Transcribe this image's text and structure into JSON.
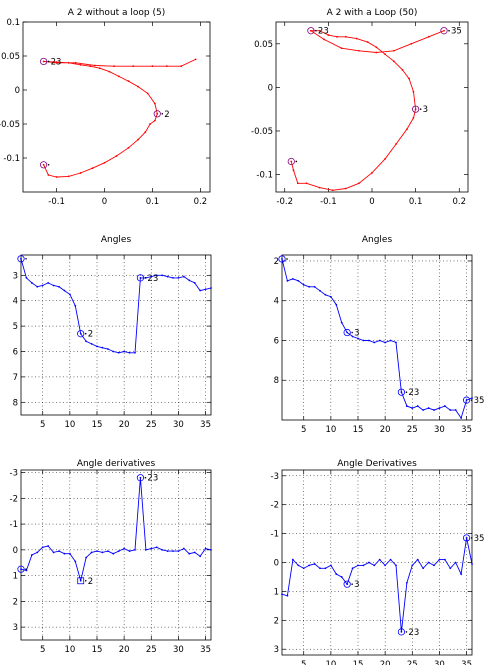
{
  "chart_data": [
    {
      "panel": "top-left",
      "type": "line",
      "title": "A 2 without a loop (5)",
      "line_color": "#ff0000",
      "marker_color": "#800080",
      "xlim": [
        -0.17,
        0.22
      ],
      "ylim": [
        0.1,
        -0.15
      ],
      "xticks": [
        -0.1,
        0,
        0.1,
        0.2
      ],
      "xtick_labels": [
        "-0.1",
        "0",
        "0.1",
        "0.2"
      ],
      "yticks": [
        -0.1,
        -0.05,
        0,
        0.05,
        0.1
      ],
      "ytick_labels": [
        "-0.1",
        "-0.05",
        "0",
        "0.05",
        "0.1"
      ],
      "grid": false,
      "x": [
        -0.127,
        -0.117,
        -0.1,
        -0.075,
        -0.05,
        -0.025,
        0.0,
        0.025,
        0.05,
        0.07,
        0.085,
        0.095,
        0.105,
        0.11,
        0.105,
        0.09,
        0.07,
        0.05,
        0.03,
        0.01,
        -0.01,
        -0.03,
        -0.05,
        -0.075,
        -0.1,
        -0.127,
        -0.1,
        -0.06,
        -0.02,
        0.02,
        0.06,
        0.1,
        0.13,
        0.16,
        0.19
      ],
      "y": [
        -0.11,
        -0.125,
        -0.128,
        -0.127,
        -0.122,
        -0.115,
        -0.107,
        -0.097,
        -0.085,
        -0.073,
        -0.062,
        -0.05,
        -0.045,
        -0.035,
        -0.02,
        -0.005,
        0.005,
        0.013,
        0.02,
        0.027,
        0.032,
        0.035,
        0.037,
        0.04,
        0.041,
        0.042,
        0.04,
        0.04,
        0.036,
        0.035,
        0.035,
        0.035,
        0.035,
        0.035,
        0.045
      ],
      "marked_points": [
        {
          "index": 1,
          "label": ""
        },
        {
          "index": 14,
          "label": "2"
        },
        {
          "index": 26,
          "label": "23"
        }
      ]
    },
    {
      "panel": "top-right",
      "type": "line",
      "title": "A 2 with a Loop (50)",
      "line_color": "#ff0000",
      "marker_color": "#800080",
      "xlim": [
        -0.22,
        0.22
      ],
      "ylim": [
        0.075,
        -0.12
      ],
      "xticks": [
        -0.2,
        -0.1,
        0,
        0.1,
        0.2
      ],
      "xtick_labels": [
        "-0.2",
        "-0.1",
        "0",
        "0.1",
        "0.2"
      ],
      "yticks": [
        -0.1,
        -0.05,
        0,
        0.05
      ],
      "ytick_labels": [
        "-0.1",
        "-0.05",
        "0",
        "0.05"
      ],
      "grid": false,
      "x": [
        -0.185,
        -0.18,
        -0.17,
        -0.15,
        -0.12,
        -0.09,
        -0.06,
        -0.03,
        0.0,
        0.03,
        0.055,
        0.08,
        0.095,
        0.1,
        0.095,
        0.085,
        0.07,
        0.05,
        0.03,
        0.01,
        -0.01,
        -0.035,
        -0.06,
        -0.08,
        -0.1,
        -0.12,
        -0.14,
        -0.11,
        -0.07,
        -0.03,
        0.01,
        0.05,
        0.09,
        0.13,
        0.165
      ],
      "y": [
        -0.085,
        -0.095,
        -0.11,
        -0.11,
        -0.115,
        -0.118,
        -0.116,
        -0.11,
        -0.098,
        -0.082,
        -0.065,
        -0.048,
        -0.035,
        -0.025,
        -0.005,
        0.01,
        0.02,
        0.03,
        0.038,
        0.046,
        0.052,
        0.056,
        0.058,
        0.058,
        0.06,
        0.065,
        0.065,
        0.055,
        0.045,
        0.042,
        0.04,
        0.042,
        0.05,
        0.058,
        0.065
      ],
      "marked_points": [
        {
          "index": 1,
          "label": ""
        },
        {
          "index": 14,
          "label": "3"
        },
        {
          "index": 27,
          "label": "23"
        },
        {
          "index": 35,
          "label": "35"
        }
      ]
    },
    {
      "panel": "middle-left",
      "type": "line",
      "title": "Angles",
      "line_color": "#0000ff",
      "xlim": [
        1,
        36
      ],
      "ylim": [
        2.2,
        8.5
      ],
      "xticks": [
        5,
        10,
        15,
        20,
        25,
        30,
        35
      ],
      "xtick_labels": [
        "5",
        "10",
        "15",
        "20",
        "25",
        "30",
        "35"
      ],
      "yticks": [
        3,
        4,
        5,
        6,
        7,
        8
      ],
      "ytick_labels": [
        "3",
        "4",
        "5",
        "6",
        "7",
        "8"
      ],
      "grid": true,
      "x": [
        1,
        2,
        3,
        4,
        5,
        6,
        7,
        8,
        9,
        10,
        11,
        12,
        13,
        14,
        15,
        16,
        17,
        18,
        19,
        20,
        21,
        22,
        23,
        24,
        25,
        26,
        27,
        28,
        29,
        30,
        31,
        32,
        33,
        34,
        35,
        36
      ],
      "y": [
        2.35,
        3.1,
        3.3,
        3.45,
        3.4,
        3.3,
        3.4,
        3.45,
        3.6,
        3.75,
        4.2,
        5.3,
        5.6,
        5.7,
        5.8,
        5.85,
        5.9,
        6.0,
        6.05,
        6.0,
        6.05,
        6.05,
        3.1,
        3.1,
        3.05,
        3.0,
        3.0,
        3.05,
        3.1,
        3.1,
        3.05,
        3.2,
        3.3,
        3.6,
        3.55,
        3.5
      ],
      "marked_points": [
        {
          "index": 1,
          "label": ""
        },
        {
          "index": 12,
          "label": "2"
        },
        {
          "index": 23,
          "label": "23"
        }
      ]
    },
    {
      "panel": "middle-right",
      "type": "line",
      "title": "Angles",
      "line_color": "#0000ff",
      "xlim": [
        1,
        36
      ],
      "ylim": [
        1.7,
        10
      ],
      "xticks": [
        5,
        10,
        15,
        20,
        25,
        30,
        35
      ],
      "xtick_labels": [
        "5",
        "10",
        "15",
        "20",
        "25",
        "30",
        "35"
      ],
      "yticks": [
        2,
        4,
        6,
        8
      ],
      "ytick_labels": [
        "2",
        "4",
        "6",
        "8"
      ],
      "grid": true,
      "x": [
        1,
        2,
        3,
        4,
        5,
        6,
        7,
        8,
        9,
        10,
        11,
        12,
        13,
        14,
        15,
        16,
        17,
        18,
        19,
        20,
        21,
        22,
        23,
        24,
        25,
        26,
        27,
        28,
        29,
        30,
        31,
        32,
        33,
        34,
        35,
        36
      ],
      "y": [
        1.9,
        3.0,
        2.9,
        3.0,
        3.2,
        3.3,
        3.3,
        3.5,
        3.7,
        3.8,
        4.2,
        5.1,
        5.6,
        5.8,
        5.9,
        6.0,
        6.0,
        6.1,
        6.0,
        6.1,
        6.0,
        6.1,
        8.6,
        9.3,
        9.4,
        9.3,
        9.5,
        9.4,
        9.5,
        9.4,
        9.3,
        9.5,
        9.5,
        9.9,
        9.0,
        8.9
      ],
      "marked_points": [
        {
          "index": 1,
          "label": ""
        },
        {
          "index": 13,
          "label": "3"
        },
        {
          "index": 23,
          "label": "23"
        },
        {
          "index": 35,
          "label": "35"
        }
      ]
    },
    {
      "panel": "bottom-left",
      "type": "line",
      "title": "Angle derivatives",
      "line_color": "#0000ff",
      "xlim": [
        1,
        36
      ],
      "ylim": [
        -3.1,
        3.5
      ],
      "xticks": [
        5,
        10,
        15,
        20,
        25,
        30,
        35
      ],
      "xtick_labels": [
        "5",
        "10",
        "15",
        "20",
        "25",
        "30",
        "35"
      ],
      "yticks": [
        -3,
        -2,
        -1,
        0,
        1,
        2,
        3
      ],
      "ytick_labels": [
        "-3",
        "-2",
        "-1",
        "0",
        "1",
        "2",
        "3"
      ],
      "grid": true,
      "x": [
        1,
        2,
        3,
        4,
        5,
        6,
        7,
        8,
        9,
        10,
        11,
        12,
        13,
        14,
        15,
        16,
        17,
        18,
        19,
        20,
        21,
        22,
        23,
        24,
        25,
        26,
        27,
        28,
        29,
        30,
        31,
        32,
        33,
        34,
        35,
        36
      ],
      "y": [
        0.75,
        0.8,
        0.2,
        0.1,
        -0.1,
        -0.15,
        0.1,
        0.05,
        0.15,
        0.15,
        0.45,
        1.2,
        0.3,
        0.1,
        0.05,
        0.1,
        0.05,
        0.15,
        0.05,
        -0.05,
        0.05,
        0.0,
        -2.8,
        0.0,
        -0.05,
        -0.1,
        0.0,
        0.05,
        0.05,
        0.05,
        -0.05,
        0.15,
        0.1,
        0.25,
        -0.05,
        0.0
      ],
      "marked_points": [
        {
          "index": 1,
          "label": ""
        },
        {
          "index": 12,
          "label": "2"
        },
        {
          "index": 23,
          "label": "23"
        }
      ]
    },
    {
      "panel": "bottom-right",
      "type": "line",
      "title": "Angle Derivatives",
      "line_color": "#0000ff",
      "xlim": [
        1,
        36
      ],
      "ylim": [
        -3.2,
        3.2
      ],
      "xticks": [
        5,
        10,
        15,
        20,
        25,
        30,
        35
      ],
      "xtick_labels": [
        "5",
        "10",
        "15",
        "20",
        "25",
        "30",
        "35"
      ],
      "yticks": [
        -3,
        -2,
        -1,
        0,
        1,
        2,
        3
      ],
      "ytick_labels": [
        "-3",
        "-2",
        "-1",
        "0",
        "1",
        "2",
        "3"
      ],
      "grid": true,
      "x": [
        1,
        2,
        3,
        4,
        5,
        6,
        7,
        8,
        9,
        10,
        11,
        12,
        13,
        14,
        15,
        16,
        17,
        18,
        19,
        20,
        21,
        22,
        23,
        24,
        25,
        26,
        27,
        28,
        29,
        30,
        31,
        32,
        33,
        34,
        35,
        36
      ],
      "y": [
        1.1,
        1.15,
        -0.1,
        0.1,
        0.2,
        0.1,
        0.05,
        0.2,
        0.2,
        0.1,
        0.4,
        0.5,
        0.75,
        0.2,
        0.1,
        0.1,
        0.0,
        0.1,
        -0.1,
        0.1,
        -0.1,
        0.1,
        2.4,
        0.7,
        0.1,
        -0.1,
        0.2,
        0.0,
        0.1,
        -0.1,
        -0.1,
        0.2,
        0.0,
        0.4,
        -0.85,
        0.05
      ],
      "marked_points": [
        {
          "index": 13,
          "label": "3"
        },
        {
          "index": 23,
          "label": "23"
        },
        {
          "index": 35,
          "label": "35"
        }
      ]
    }
  ]
}
